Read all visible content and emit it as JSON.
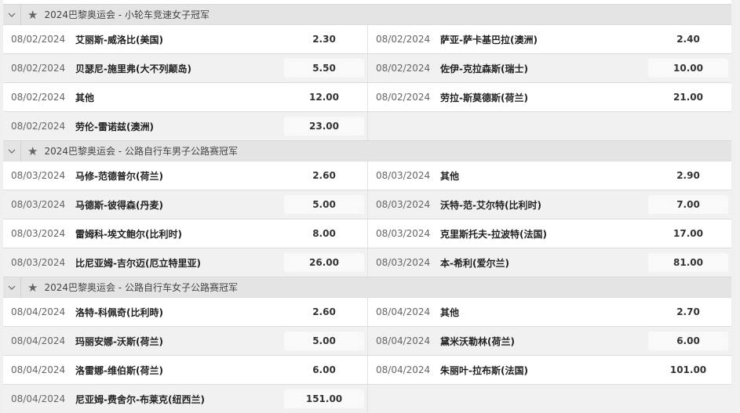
{
  "sections": [
    {
      "title": "2024巴黎奥运会 - 小轮车竞速女子冠军",
      "rows": [
        [
          {
            "date": "08/02/2024",
            "name": "艾丽斯-威洛比(美国)",
            "odds": "2.30"
          },
          {
            "date": "08/02/2024",
            "name": "萨亚-萨卡基巴拉(澳洲)",
            "odds": "2.40"
          }
        ],
        [
          {
            "date": "08/02/2024",
            "name": "贝瑟尼-施里弗(大不列颠岛)",
            "odds": "5.50"
          },
          {
            "date": "08/02/2024",
            "name": "佐伊-克拉森斯(瑞士)",
            "odds": "10.00"
          }
        ],
        [
          {
            "date": "08/02/2024",
            "name": "其他",
            "odds": "12.00"
          },
          {
            "date": "08/02/2024",
            "name": "劳拉-斯莫德斯(荷兰)",
            "odds": "21.00"
          }
        ],
        [
          {
            "date": "08/02/2024",
            "name": "劳伦-雷诺兹(澳洲)",
            "odds": "23.00"
          },
          null
        ]
      ]
    },
    {
      "title": "2024巴黎奥运会 - 公路自行车男子公路赛冠军",
      "rows": [
        [
          {
            "date": "08/03/2024",
            "name": "马修-范德普尔(荷兰)",
            "odds": "2.60"
          },
          {
            "date": "08/03/2024",
            "name": "其他",
            "odds": "2.90"
          }
        ],
        [
          {
            "date": "08/03/2024",
            "name": "马德斯-彼得森(丹麦)",
            "odds": "5.00"
          },
          {
            "date": "08/03/2024",
            "name": "沃特-范-艾尔特(比利时)",
            "odds": "7.00"
          }
        ],
        [
          {
            "date": "08/03/2024",
            "name": "雷姆科-埃文鲍尔(比利时)",
            "odds": "8.00"
          },
          {
            "date": "08/03/2024",
            "name": "克里斯托夫-拉波特(法国)",
            "odds": "17.00"
          }
        ],
        [
          {
            "date": "08/03/2024",
            "name": "比尼亚姆-吉尔迈(厄立特里亚)",
            "odds": "26.00"
          },
          {
            "date": "08/03/2024",
            "name": "本-希利(爱尔兰)",
            "odds": "81.00"
          }
        ]
      ]
    },
    {
      "title": "2024巴黎奥运会 - 公路自行车女子公路赛冠军",
      "rows": [
        [
          {
            "date": "08/04/2024",
            "name": "洛特-科佩奇(比利時)",
            "odds": "2.60"
          },
          {
            "date": "08/04/2024",
            "name": "其他",
            "odds": "2.70"
          }
        ],
        [
          {
            "date": "08/04/2024",
            "name": "玛丽安娜-沃斯(荷兰)",
            "odds": "5.00"
          },
          {
            "date": "08/04/2024",
            "name": "黛米沃勒林(荷兰)",
            "odds": "6.00"
          }
        ],
        [
          {
            "date": "08/04/2024",
            "name": "洛雷娜-维伯斯(荷兰)",
            "odds": "6.00"
          },
          {
            "date": "08/04/2024",
            "name": "朱丽叶-拉布斯(法国)",
            "odds": "101.00"
          }
        ],
        [
          {
            "date": "08/04/2024",
            "name": "尼亚姆-费舍尔-布莱克(纽西兰)",
            "odds": "151.00"
          },
          null
        ]
      ]
    }
  ]
}
